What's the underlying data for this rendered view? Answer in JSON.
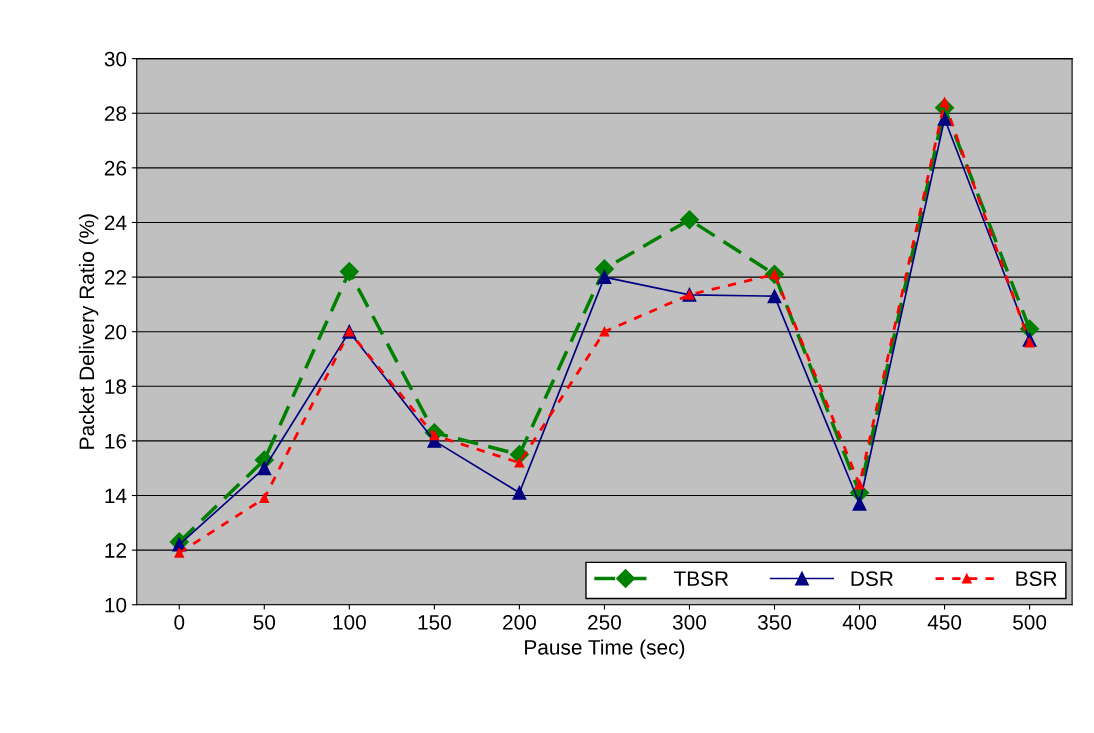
{
  "chart_data": {
    "type": "line",
    "xlabel": "Pause Time (sec)",
    "ylabel": "Packet Delivery Ratio (%)",
    "categories": [
      "0",
      "50",
      "100",
      "150",
      "200",
      "250",
      "300",
      "350",
      "400",
      "450",
      "500"
    ],
    "series": [
      {
        "name": "TBSR",
        "color": "#008000",
        "marker": "diamond",
        "line_style": "dashed",
        "values": [
          12.3,
          15.3,
          22.2,
          16.3,
          15.5,
          22.3,
          24.1,
          22.1,
          14.1,
          28.2,
          20.1
        ]
      },
      {
        "name": "DSR",
        "color": "#000080",
        "marker": "triangle",
        "line_style": "solid",
        "values": [
          12.2,
          15.0,
          20.0,
          16.0,
          14.1,
          22.0,
          21.35,
          21.3,
          13.7,
          27.8,
          19.7
        ]
      },
      {
        "name": "BSR",
        "color": "#ff0000",
        "marker": "triangle",
        "line_style": "dotted",
        "values": [
          11.9,
          13.9,
          20.0,
          16.2,
          15.2,
          20.0,
          21.35,
          22.1,
          14.4,
          28.4,
          19.6
        ]
      }
    ],
    "ylim": [
      10,
      30
    ],
    "yticks": [
      10,
      12,
      14,
      16,
      18,
      20,
      22,
      24,
      26,
      28,
      30
    ],
    "grid": "y",
    "legend": "bottom right"
  }
}
